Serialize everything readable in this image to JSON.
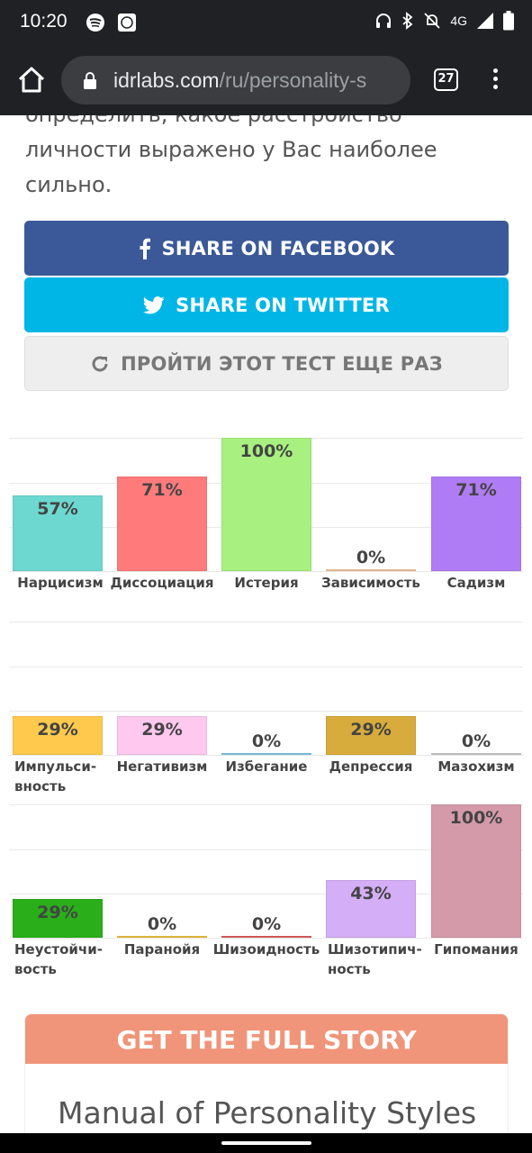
{
  "status_bar": {
    "time": "10:20",
    "network": "4G",
    "icons": [
      "spotify-icon",
      "app-badge-icon",
      "headphones-icon",
      "bluetooth-icon",
      "do-not-disturb-icon",
      "signal-icon",
      "battery-icon"
    ]
  },
  "browser": {
    "url_domain": "idrlabs.com",
    "url_path": "/ru/personality-s",
    "tab_count": "27"
  },
  "intro_text": "определить, какое расстройство личности выражено у Вас наиболее сильно.",
  "buttons": {
    "facebook": "SHARE ON FACEBOOK",
    "twitter": "SHARE ON TWITTER",
    "retake": "ПРОЙТИ ЭТОТ ТЕСТ ЕЩЕ РАЗ"
  },
  "colors": {
    "facebook": "#3b5998",
    "twitter": "#00b6e6",
    "story_header": "#f0957a"
  },
  "chart_data": [
    {
      "type": "bar",
      "categories": [
        "Нарцисизм",
        "Диссоциация",
        "Истерия",
        "Зависимость",
        "Садизм"
      ],
      "values": [
        57,
        71,
        100,
        0,
        71
      ],
      "value_labels": [
        "57%",
        "71%",
        "100%",
        "0%",
        "71%"
      ],
      "colors": [
        "#6dd8d0",
        "#ff7b7b",
        "#a8f07f",
        "#f2c49b",
        "#b07cf5"
      ],
      "ylim": [
        0,
        100
      ]
    },
    {
      "type": "bar",
      "categories": [
        "Импульси-вность",
        "Негативизм",
        "Избегание",
        "Депрессия",
        "Мазохизм"
      ],
      "values": [
        29,
        29,
        0,
        29,
        0
      ],
      "value_labels": [
        "29%",
        "29%",
        "0%",
        "29%",
        "0%"
      ],
      "colors": [
        "#ffc94d",
        "#ffc8ee",
        "#7fc8e8",
        "#d8ac3c",
        "#cccccc"
      ],
      "ylim": [
        0,
        100
      ]
    },
    {
      "type": "bar",
      "categories": [
        "Неустойчи-вость",
        "Паранойя",
        "Шизоидность",
        "Шизотипич-ность",
        "Гипомания"
      ],
      "values": [
        29,
        0,
        0,
        43,
        100
      ],
      "value_labels": [
        "29%",
        "0%",
        "0%",
        "43%",
        "100%"
      ],
      "colors": [
        "#2aae1a",
        "#f0c040",
        "#e06060",
        "#d4aef6",
        "#d49aaa"
      ],
      "ylim": [
        0,
        100
      ]
    }
  ],
  "full_story": {
    "header": "GET THE FULL STORY",
    "title": "Manual of Personality Styles"
  }
}
